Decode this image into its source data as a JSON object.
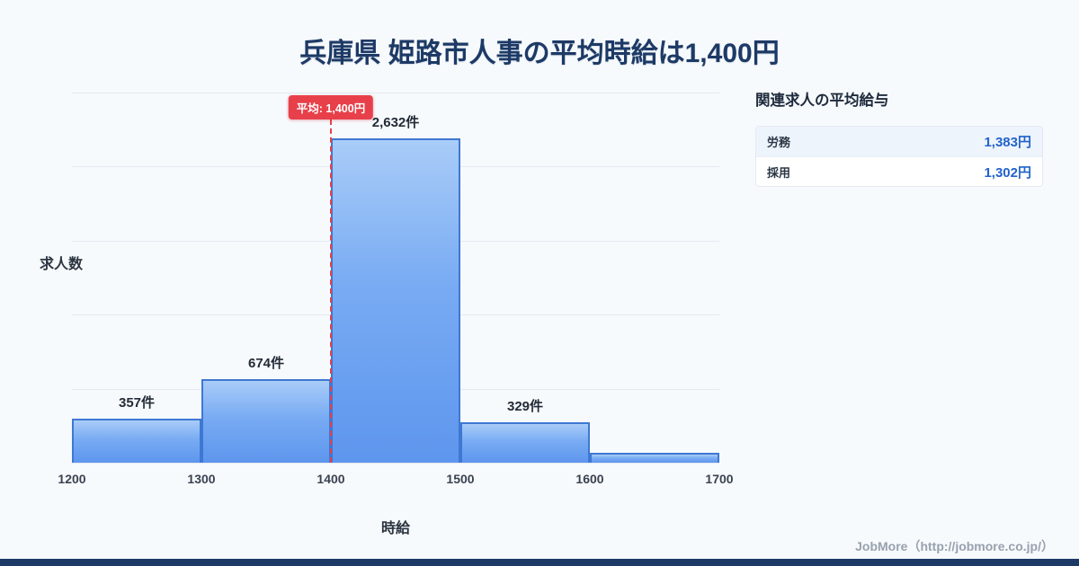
{
  "page": {
    "title": "兵庫県 姫路市人事の平均時給は1,400円",
    "footer": "JobMore（http://jobmore.co.jp/）"
  },
  "chart_data": {
    "type": "bar",
    "title": "兵庫県 姫路市人事の平均時給は1,400円",
    "xlabel": "時給",
    "ylabel": "求人数",
    "x_ticks": [
      "1200",
      "1300",
      "1400",
      "1500",
      "1600",
      "1700"
    ],
    "categories": [
      "1200-1300",
      "1300-1400",
      "1400-1500",
      "1500-1600",
      "1600-1700"
    ],
    "values": [
      357,
      674,
      2632,
      329,
      80
    ],
    "bar_labels": [
      "357件",
      "674件",
      "2,632件",
      "329件",
      ""
    ],
    "ylim": [
      0,
      3000
    ],
    "grid": true,
    "legend": "none",
    "average": {
      "value": 1400,
      "label": "平均: 1,400円"
    },
    "colors": {
      "bar_top": "#a9ccf8",
      "bar_bottom": "#5e96ee",
      "bar_border": "#3e78d3",
      "average_line": "#e8404a",
      "value_text": "#2263cb",
      "title_text": "#1d3a66"
    }
  },
  "side_panel": {
    "heading": "関連求人の平均給与",
    "rows": [
      {
        "label": "労務",
        "value": "1,383円"
      },
      {
        "label": "採用",
        "value": "1,302円"
      }
    ]
  }
}
